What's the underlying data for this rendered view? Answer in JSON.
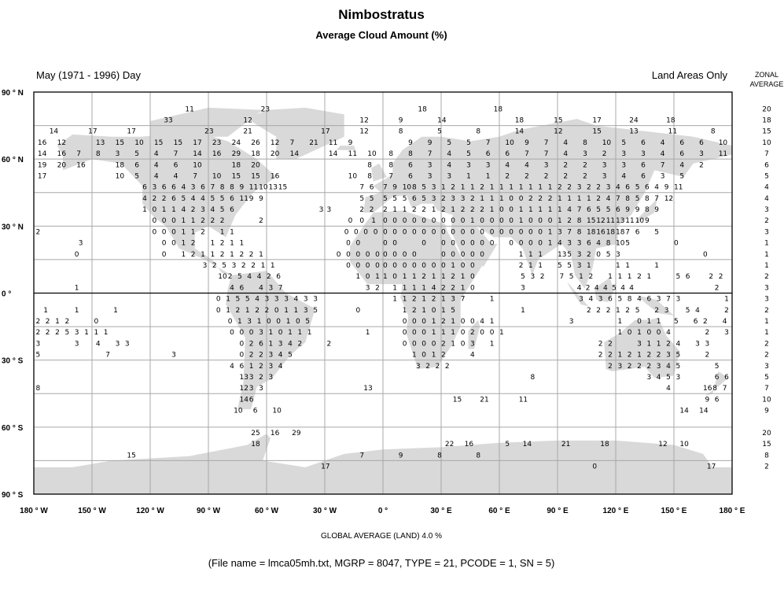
{
  "header": {
    "title": "Nimbostratus",
    "subtitle": "Average Cloud Amount (%)",
    "period": "May (1971 - 1996) Day",
    "scope": "Land Areas Only",
    "zonal_label_1": "ZONAL",
    "zonal_label_2": "AVERAGE"
  },
  "footer": {
    "global_average": "GLOBAL AVERAGE (LAND)   4.0 %",
    "file_info": "(File name = lmca05mh.txt, MGRP = 8047, TYPE = 21, PCODE = 1, SN = 5)"
  },
  "colors": {
    "land": "#d9d9d9",
    "grid": "#a8a8a8",
    "equator": "#000000"
  },
  "axes": {
    "lat_labels": [
      [
        "90 ° N",
        90
      ],
      [
        "60 ° N",
        60
      ],
      [
        "30 ° N",
        30
      ],
      [
        "0 °",
        0
      ],
      [
        "30 ° S",
        -30
      ],
      [
        "60 ° S",
        -60
      ],
      [
        "90 ° S",
        -90
      ]
    ],
    "lon_labels": [
      [
        "180 ° W",
        -180
      ],
      [
        "150 ° W",
        -150
      ],
      [
        "120 ° W",
        -120
      ],
      [
        "90 ° W",
        -90
      ],
      [
        "60 ° W",
        -60
      ],
      [
        "30 ° W",
        -30
      ],
      [
        "0 °",
        0
      ],
      [
        "30 ° E",
        30
      ],
      [
        "60 ° E",
        60
      ],
      [
        "90 ° E",
        90
      ],
      [
        "120 ° E",
        120
      ],
      [
        "150 ° E",
        150
      ],
      [
        "180 ° E",
        180
      ]
    ]
  },
  "rows": [
    {
      "lat": 82.5,
      "zonal": "20",
      "cells": [
        [
          -102,
          5,
          "11"
        ],
        [
          -63,
          5,
          "23"
        ],
        [
          18,
          5,
          "18"
        ],
        [
          57,
          5,
          "18"
        ]
      ]
    },
    {
      "lat": 77.5,
      "zonal": "18",
      "cells": [
        [
          -113,
          5,
          "33"
        ],
        [
          -72,
          5,
          "12"
        ],
        [
          -12,
          5,
          "12"
        ],
        [
          8,
          5,
          "9"
        ],
        [
          28,
          5,
          "14"
        ],
        [
          68,
          5,
          "18"
        ],
        [
          88,
          5,
          "15"
        ],
        [
          108,
          5,
          "17"
        ],
        [
          127,
          5,
          "24"
        ],
        [
          146,
          5,
          "18"
        ]
      ]
    },
    {
      "lat": 72.5,
      "zonal": "15",
      "cells": [
        [
          -172,
          5,
          "14"
        ],
        [
          -152,
          5,
          "17"
        ],
        [
          -132,
          5,
          "17"
        ],
        [
          -92,
          5,
          "23"
        ],
        [
          -72,
          5,
          "21"
        ],
        [
          -32,
          5,
          "17"
        ],
        [
          -12,
          5,
          "12"
        ],
        [
          8,
          5,
          "8"
        ],
        [
          28,
          5,
          "5"
        ],
        [
          48,
          5,
          "8"
        ],
        [
          68,
          5,
          "14"
        ],
        [
          88,
          5,
          "12"
        ],
        [
          108,
          5,
          "15"
        ],
        [
          127,
          5,
          "13"
        ],
        [
          147,
          5,
          "11"
        ],
        [
          169,
          5,
          "8"
        ]
      ]
    },
    {
      "lat": 67.5,
      "zonal": "10",
      "cells": [
        [
          -178,
          10,
          "16 12 . 13 15 10 15 15 17 23 24 26 12 7 21 11 9"
        ],
        [
          13,
          10,
          "9 9 5 5 7 10 9 7 4 8 10 5 6 4 6 6 10"
        ]
      ]
    },
    {
      "lat": 62.5,
      "zonal": "7",
      "cells": [
        [
          -178,
          10,
          "14 16 7 8 3 5 4 7 14 16 29 18 20 14 . 14 11 10"
        ],
        [
          3,
          10,
          "8 8 7 4 5 6 6 7 7 4 3 2 3 3 4 6 3 11"
        ]
      ]
    },
    {
      "lat": 57.5,
      "zonal": "6",
      "cells": [
        [
          -178,
          10,
          "19 20 16 . 18 6 4 6 10 . 18 20 . . . . . 8"
        ],
        [
          3,
          10,
          "8 6 3 4 3 3 4 4 3 2 2 3 3 6 7 4 2"
        ]
      ]
    },
    {
      "lat": 52.5,
      "zonal": "5",
      "cells": [
        [
          -178,
          10,
          "17 . . . 10 5 4 4 7 10 15 15 16 . . . 10 8"
        ],
        [
          3,
          10,
          "7 6 3 3 1 1 2 2 2 2 2 3 4 6 3 5"
        ]
      ]
    },
    {
      "lat": 47.5,
      "zonal": "4",
      "cells": [
        [
          -124,
          5,
          "6 3 6 6 4 3 6 7 8 8 9 11 10 13 15"
        ],
        [
          -12,
          5,
          "7 6"
        ],
        [
          0,
          5,
          "7 9 10 8 5 3 1 2 1 1 2 1 1 1 1 1 1 1 2 2 3 2 2 3 4 6 5 6 4 9 11"
        ]
      ]
    },
    {
      "lat": 42.5,
      "zonal": "4",
      "cells": [
        [
          -124,
          5,
          "4 2 2 6 5 4 4 5 5 6 11 9 9"
        ],
        [
          -12,
          5,
          "5 5"
        ],
        [
          0,
          5,
          "5 5 5 6 5 3 2 3 3 2 1 1 1 0 0 2 2 2 1 1 1 1 2 4 7 8 5 8 7 12"
        ]
      ]
    },
    {
      "lat": 37.5,
      "zonal": "3",
      "cells": [
        [
          -124,
          5,
          "1 0 1 1 4 2 3 4 5 6"
        ],
        [
          -33,
          4,
          "3 3"
        ],
        [
          -12,
          5,
          "2 2"
        ],
        [
          0,
          5,
          "2 1 1 2 2 1 2 1 2 2 2 1 0 0 1 1 1 1 1 4 7 6 5 5 6 9 9 8 9"
        ]
      ]
    },
    {
      "lat": 32.5,
      "zonal": "2",
      "cells": [
        [
          -119,
          5,
          "0 0 0 1 1 2 2 2 . . . 2"
        ],
        [
          -18,
          6,
          "0 0 1"
        ],
        [
          0,
          5,
          "0 0 0 0 0 0 0 0 0 1 0 0 0 0 1 0 0 0 1 2 8 15 12 11 13 11 10 9"
        ]
      ]
    },
    {
      "lat": 27.5,
      "zonal": "3",
      "cells": [
        [
          -179,
          5,
          "2"
        ],
        [
          -119,
          5,
          "0 0 0 1 1 2 . 1 1"
        ],
        [
          -20,
          5,
          "0 0 0 0"
        ],
        [
          0,
          5,
          "0 0 0 0 0 0 0 0 0 0 0 0 0 0 0 0 0 1 3 7 8 18 16 18 18 7 6 . 5"
        ]
      ]
    },
    {
      "lat": 22.5,
      "zonal": "1",
      "cells": [
        [
          -157,
          5,
          "3"
        ],
        [
          -114,
          5,
          "0 0 1 2 . 1 2 1 1"
        ],
        [
          -19,
          5,
          "0 0"
        ],
        [
          0,
          5,
          "0 0 . . 0 . 0 0 0 0 0 0 . 0 0 0 0 1 4 3 3 6 4 8 10 5 . . . . 0"
        ]
      ]
    },
    {
      "lat": 17.5,
      "zonal": "1",
      "cells": [
        [
          -159,
          5,
          "0"
        ],
        [
          -114,
          5,
          "0 . 1 2 1 1 2 1 2 2 1"
        ],
        [
          -24,
          5,
          "0 0 0 0 0"
        ],
        [
          0,
          5,
          "0 0 0 0 . . 0 0 0 0 0 . . . 1 1 1 . 13 5 3 2 0 5 3 . . . . . . . . 0"
        ]
      ]
    },
    {
      "lat": 12.5,
      "zonal": "1",
      "cells": [
        [
          -93,
          5,
          "3 2 5 3 2 2 1"
        ],
        [
          -58,
          5,
          "1"
        ],
        [
          -19,
          5,
          "0 0 0 0"
        ],
        [
          0,
          5,
          "0 0 0 0 0 0 0 1 0 0 . . . . 2 1 1 . 5 5 3 1 . . 1 1 . . 1"
        ]
      ]
    },
    {
      "lat": 7.5,
      "zonal": "2",
      "cells": [
        [
          -85,
          5,
          "10 2 5 4 4 2 6"
        ],
        [
          -14,
          5,
          "1 0 1"
        ],
        [
          0,
          5,
          "1 0 1 1 2 1 1 2 1 0"
        ],
        [
          71,
          5,
          "5 3 2"
        ],
        [
          91,
          5,
          "7 5 1 2 . 1"
        ],
        [
          121,
          5,
          "1 1 2 1"
        ],
        [
          151,
          5,
          "5 6"
        ],
        [
          168,
          5,
          "2 2"
        ]
      ]
    },
    {
      "lat": 2.5,
      "zonal": "3",
      "cells": [
        [
          -159,
          5,
          "1"
        ],
        [
          -79,
          5,
          "4 6 . 4 3 7"
        ],
        [
          -9,
          5,
          "3 2"
        ],
        [
          5,
          5,
          "1 1 1 1 4 2 2 1 0"
        ],
        [
          71,
          5,
          "3"
        ],
        [
          100,
          4.5,
          "4 2 4 4 5 4 4"
        ],
        [
          171,
          5,
          "2"
        ]
      ]
    },
    {
      "lat": -2.5,
      "zonal": "3",
      "cells": [
        [
          -86,
          5,
          "0 1 5 5 4 3 3 3 4 3 3"
        ],
        [
          5,
          5,
          "1 1 2 1 2 1 3 7 . . 1"
        ],
        [
          101,
          5,
          "3 4 3 6 5 8 4 6 3 7 3"
        ],
        [
          176,
          5,
          "1"
        ]
      ]
    },
    {
      "lat": -7.5,
      "zonal": "2",
      "cells": [
        [
          -175,
          5,
          "1"
        ],
        [
          -159,
          5,
          "1"
        ],
        [
          -139,
          5,
          "1"
        ],
        [
          -86,
          5,
          "0 1 2 1 2 2 0 1 1 3 5"
        ],
        [
          -14,
          5,
          "0"
        ],
        [
          10,
          5,
          "1 2 1 0 1 5"
        ],
        [
          71,
          5,
          "1"
        ],
        [
          105,
          5,
          "2 2 2 1 2 5 . 2 3"
        ],
        [
          156,
          5,
          "5 4"
        ],
        [
          176,
          5,
          "2"
        ]
      ]
    },
    {
      "lat": -12.5,
      "zonal": "1",
      "cells": [
        [
          -179,
          5,
          "2 2 1 2"
        ],
        [
          -149,
          5,
          "0"
        ],
        [
          -80,
          5,
          "0 1 3 1 0 0 1 0 5"
        ],
        [
          10,
          5,
          "0 0 0 1 2 1 0 0 4 1"
        ],
        [
          96,
          5,
          "3"
        ],
        [
          121,
          5,
          "1 . 0 1 1"
        ],
        [
          150,
          5,
          "5 . 6 2 . 4"
        ]
      ]
    },
    {
      "lat": -17.5,
      "zonal": "1",
      "cells": [
        [
          -179,
          5,
          "2 2 2 5 3 1 1 1"
        ],
        [
          -79,
          5,
          "0 0 0 3 1 0 1 1 1"
        ],
        [
          -9,
          5,
          "1"
        ],
        [
          10,
          5,
          "0 0 0 1 1 1 0 2 0 0 1"
        ],
        [
          121,
          5,
          "1 0 1 0 0 4"
        ],
        [
          166,
          5,
          "2"
        ],
        [
          176,
          5,
          "3"
        ]
      ]
    },
    {
      "lat": -22.5,
      "zonal": "2",
      "cells": [
        [
          -179,
          5,
          "3"
        ],
        [
          -159,
          5,
          "3"
        ],
        [
          -148,
          5,
          "4 . 3 3"
        ],
        [
          -74,
          5,
          "0 2 6 1 3 4 2"
        ],
        [
          -29,
          5,
          "2"
        ],
        [
          10,
          5,
          "0 0 0 0 2 1 0 3 . 1"
        ],
        [
          111,
          5,
          "2 2"
        ],
        [
          131,
          5,
          "3 1 1 2 4 . 3 3"
        ]
      ]
    },
    {
      "lat": -27.5,
      "zonal": "2",
      "cells": [
        [
          -179,
          5,
          "5"
        ],
        [
          -143,
          5,
          "7"
        ],
        [
          -109,
          5,
          "3"
        ],
        [
          -74,
          5,
          "0 2 2 3 4 5"
        ],
        [
          15,
          5,
          "1 0 1 2 . . 4"
        ],
        [
          111,
          5,
          "2 2 1 2 1 2 2 3 5"
        ],
        [
          166,
          5,
          "2"
        ]
      ]
    },
    {
      "lat": -32.5,
      "zonal": "3",
      "cells": [
        [
          -79,
          5,
          "4 6 1 2 3 4"
        ],
        [
          17,
          5,
          "3 2 2 2"
        ],
        [
          116,
          5,
          "2 3 2 2 2 3 4 5"
        ],
        [
          171,
          5,
          "5"
        ]
      ]
    },
    {
      "lat": -37.5,
      "zonal": "5",
      "cells": [
        [
          -74,
          5,
          "13 3 2 3"
        ],
        [
          76,
          5,
          "8"
        ],
        [
          136,
          5,
          "3 4 5 3"
        ],
        [
          171,
          5,
          "6 6"
        ]
      ]
    },
    {
      "lat": -42.5,
      "zonal": "7",
      "cells": [
        [
          -179,
          5,
          "8"
        ],
        [
          -74,
          5,
          "12 3 3"
        ],
        [
          -10,
          5,
          "13"
        ],
        [
          146,
          5,
          "4"
        ],
        [
          165,
          5,
          "16 8 7"
        ]
      ]
    },
    {
      "lat": -47.5,
      "zonal": "10",
      "cells": [
        [
          -74,
          5,
          "14 6"
        ],
        [
          36,
          5,
          "15"
        ],
        [
          50,
          5,
          "21"
        ],
        [
          70,
          5,
          "11"
        ],
        [
          166,
          5,
          "9 6"
        ]
      ]
    },
    {
      "lat": -52.5,
      "zonal": "9",
      "cells": [
        [
          -77,
          5,
          "10"
        ],
        [
          -67,
          5,
          "6"
        ],
        [
          -57,
          5,
          "10"
        ],
        [
          153,
          5,
          "14"
        ],
        [
          163,
          5,
          "14"
        ]
      ]
    },
    {
      "lat": -57.5,
      "zonal": "",
      "cells": []
    },
    {
      "lat": -62.5,
      "zonal": "20",
      "cells": [
        [
          -68,
          5,
          "25"
        ],
        [
          -58,
          5,
          "16"
        ],
        [
          -47,
          5,
          "29"
        ]
      ]
    },
    {
      "lat": -67.5,
      "zonal": "15",
      "cells": [
        [
          -68,
          5,
          "18"
        ],
        [
          32,
          5,
          "22"
        ],
        [
          42,
          5,
          "16"
        ],
        [
          63,
          5,
          "5"
        ],
        [
          72,
          5,
          "14"
        ],
        [
          92,
          5,
          "21"
        ],
        [
          112,
          5,
          "18"
        ],
        [
          142,
          5,
          "12"
        ],
        [
          153,
          5,
          "10"
        ]
      ]
    },
    {
      "lat": -72.5,
      "zonal": "8",
      "cells": [
        [
          -132,
          5,
          "15"
        ],
        [
          -12,
          5,
          "7"
        ],
        [
          8,
          5,
          "9"
        ],
        [
          28,
          5,
          "8"
        ],
        [
          48,
          5,
          "8"
        ]
      ]
    },
    {
      "lat": -77.5,
      "zonal": "2",
      "cells": [
        [
          -32,
          5,
          "17"
        ],
        [
          108,
          5,
          "0"
        ],
        [
          167,
          5,
          "17"
        ]
      ]
    }
  ]
}
